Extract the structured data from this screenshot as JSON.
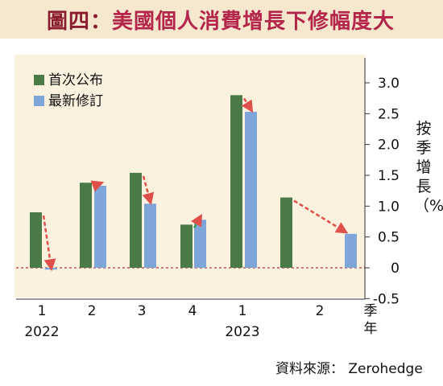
{
  "figure": {
    "title_prefix": "圖四",
    "title_sep": "：",
    "title_text": "美國個人消費增長下修幅度大",
    "source": "資料來源： Zerohedge"
  },
  "colors": {
    "header_bg": "#f6e8cf",
    "plot_bg": "#fbf1df",
    "first": "#4a7a46",
    "revised": "#7ea6d8",
    "arrow": "#e0504a",
    "zero_line": "#b4313b"
  },
  "chart_data": {
    "type": "bar",
    "categories": [
      "1",
      "2",
      "3",
      "4",
      "1",
      "2"
    ],
    "years": [
      "2022",
      "",
      "",
      "",
      "2023",
      ""
    ],
    "series": [
      {
        "name": "首次公布",
        "values": [
          0.9,
          1.38,
          1.54,
          0.7,
          2.8,
          1.14
        ]
      },
      {
        "name": "最新修訂",
        "values": [
          -0.03,
          1.33,
          1.04,
          0.78,
          2.53,
          0.55
        ]
      }
    ],
    "ylabel": "按季增長（%）",
    "xlabel": "季年",
    "ylim": [
      -0.5,
      3.0
    ],
    "yticks": [
      "-0.5",
      "0",
      "0.5",
      "1.0",
      "1.5",
      "2.0",
      "2.5",
      "3.0"
    ],
    "grid": false,
    "legend": "top-left",
    "zero_line": "dashed",
    "annotations": "revision arrows from first release to latest revision"
  }
}
